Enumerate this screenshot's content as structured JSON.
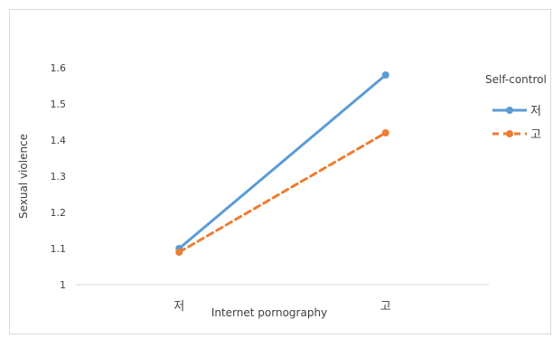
{
  "chart_data": {
    "type": "line",
    "categories": [
      "저",
      "고"
    ],
    "series": [
      {
        "name": "저",
        "values": [
          1.1,
          1.58
        ],
        "color": "#5b9bd5",
        "style": "solid"
      },
      {
        "name": "고",
        "values": [
          1.09,
          1.42
        ],
        "color": "#ed7d31",
        "style": "dashed"
      }
    ],
    "title": "",
    "xlabel": "Internet pornography",
    "ylabel": "Sexual violence",
    "legend_title": "Self-control",
    "legend_position": "right",
    "ylim": [
      1,
      1.6
    ],
    "yticks": [
      "1",
      "1.1",
      "1.2",
      "1.3",
      "1.4",
      "1.5",
      "1.6"
    ],
    "grid": false
  }
}
